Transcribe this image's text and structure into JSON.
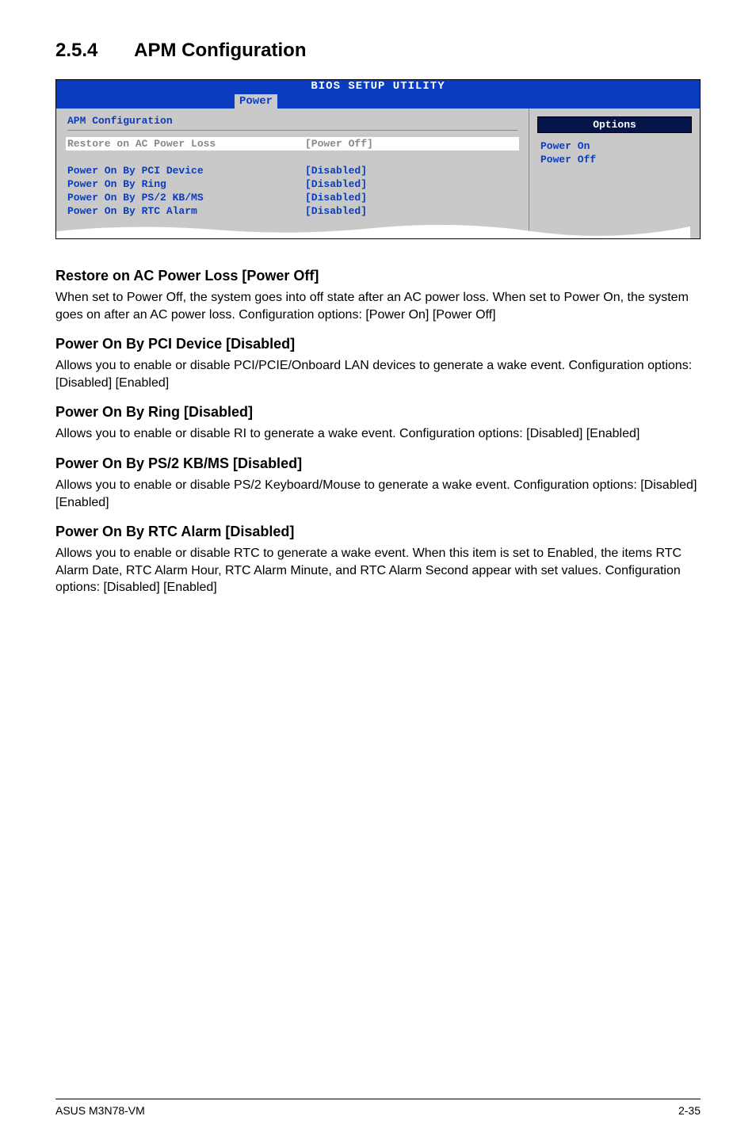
{
  "heading": {
    "number": "2.5.4",
    "title": "APM Configuration"
  },
  "bios": {
    "title": "BIOS SETUP UTILITY",
    "tab": "Power",
    "subheading": "APM Configuration",
    "rows": [
      {
        "label": "Restore on AC Power Loss",
        "value": "[Power Off]",
        "selected": true
      },
      {
        "label": "",
        "value": "",
        "blank": true
      },
      {
        "label": "Power On By PCI Device",
        "value": "[Disabled]"
      },
      {
        "label": "Power On By Ring",
        "value": "[Disabled]"
      },
      {
        "label": "Power On By PS/2 KB/MS",
        "value": "[Disabled]"
      },
      {
        "label": "Power On By RTC Alarm",
        "value": "[Disabled]"
      }
    ],
    "options_header": "Options",
    "options": [
      "Power On",
      "Power Off"
    ]
  },
  "sections": [
    {
      "title": "Restore on AC Power Loss [Power Off]",
      "body": "When set to Power Off, the system goes into off state after an AC power loss. When set to Power On, the system goes on after an AC power loss. Configuration options: [Power On] [Power Off]"
    },
    {
      "title": "Power On By PCI Device [Disabled]",
      "body": "Allows you to enable or disable PCI/PCIE/Onboard LAN devices to generate a wake event. Configuration options: [Disabled] [Enabled]"
    },
    {
      "title": "Power On By Ring [Disabled]",
      "body": "Allows you to enable or disable RI to generate a wake event. Configuration options: [Disabled] [Enabled]"
    },
    {
      "title": "Power On By PS/2 KB/MS [Disabled]",
      "body": "Allows you to enable or disable PS/2 Keyboard/Mouse to generate a wake event. Configuration options: [Disabled] [Enabled]"
    },
    {
      "title": "Power On By RTC Alarm [Disabled]",
      "body": "Allows you to enable or disable RTC to generate a wake event. When this item is set to Enabled, the items RTC Alarm Date, RTC Alarm Hour, RTC Alarm Minute, and RTC Alarm Second appear with set values. Configuration options: [Disabled] [Enabled]"
    }
  ],
  "footer": {
    "left": "ASUS M3N78-VM",
    "right": "2-35"
  },
  "colors": {
    "bios_blue": "#0a3cc0",
    "bios_grey": "#c9c9c9",
    "opt_header_bg": "#05154a"
  }
}
